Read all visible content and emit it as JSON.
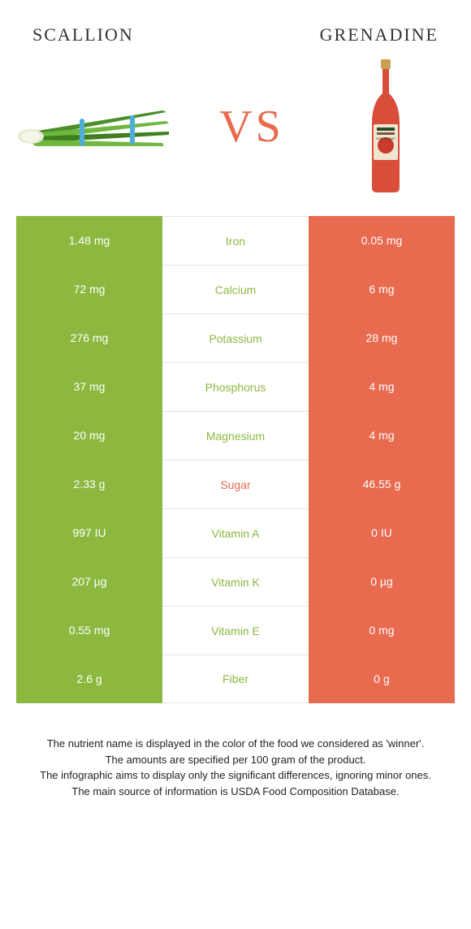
{
  "colors": {
    "left": "#8cb83f",
    "right": "#e86a4f",
    "vs": "#e86a4f",
    "bottle_body": "#d94e3a",
    "bottle_label": "#f0e5d0",
    "bottle_cap": "#c9a050"
  },
  "titles": {
    "left": "SCALLION",
    "right": "GRENADINE",
    "left_fontsize": 22,
    "right_fontsize": 22
  },
  "vs": {
    "text": "VS",
    "fontsize": 56
  },
  "rows": [
    {
      "label": "Iron",
      "left": "1.48 mg",
      "right": "0.05 mg",
      "winner": "left"
    },
    {
      "label": "Calcium",
      "left": "72 mg",
      "right": "6 mg",
      "winner": "left"
    },
    {
      "label": "Potassium",
      "left": "276 mg",
      "right": "28 mg",
      "winner": "left"
    },
    {
      "label": "Phosphorus",
      "left": "37 mg",
      "right": "4 mg",
      "winner": "left"
    },
    {
      "label": "Magnesium",
      "left": "20 mg",
      "right": "4 mg",
      "winner": "left"
    },
    {
      "label": "Sugar",
      "left": "2.33 g",
      "right": "46.55 g",
      "winner": "right"
    },
    {
      "label": "Vitamin A",
      "left": "997 IU",
      "right": "0 IU",
      "winner": "left"
    },
    {
      "label": "Vitamin K",
      "left": "207 µg",
      "right": "0 µg",
      "winner": "left"
    },
    {
      "label": "Vitamin E",
      "left": "0.55 mg",
      "right": "0 mg",
      "winner": "left"
    },
    {
      "label": "Fiber",
      "left": "2.6 g",
      "right": "0 g",
      "winner": "left"
    }
  ],
  "footer": {
    "lines": [
      "The nutrient name is displayed in the color of the food we considered as 'winner'.",
      "The amounts are specified per 100 gram of the product.",
      "The infographic aims to display only the significant differences, ignoring minor ones.",
      "The main source of information is USDA Food Composition Database."
    ]
  }
}
